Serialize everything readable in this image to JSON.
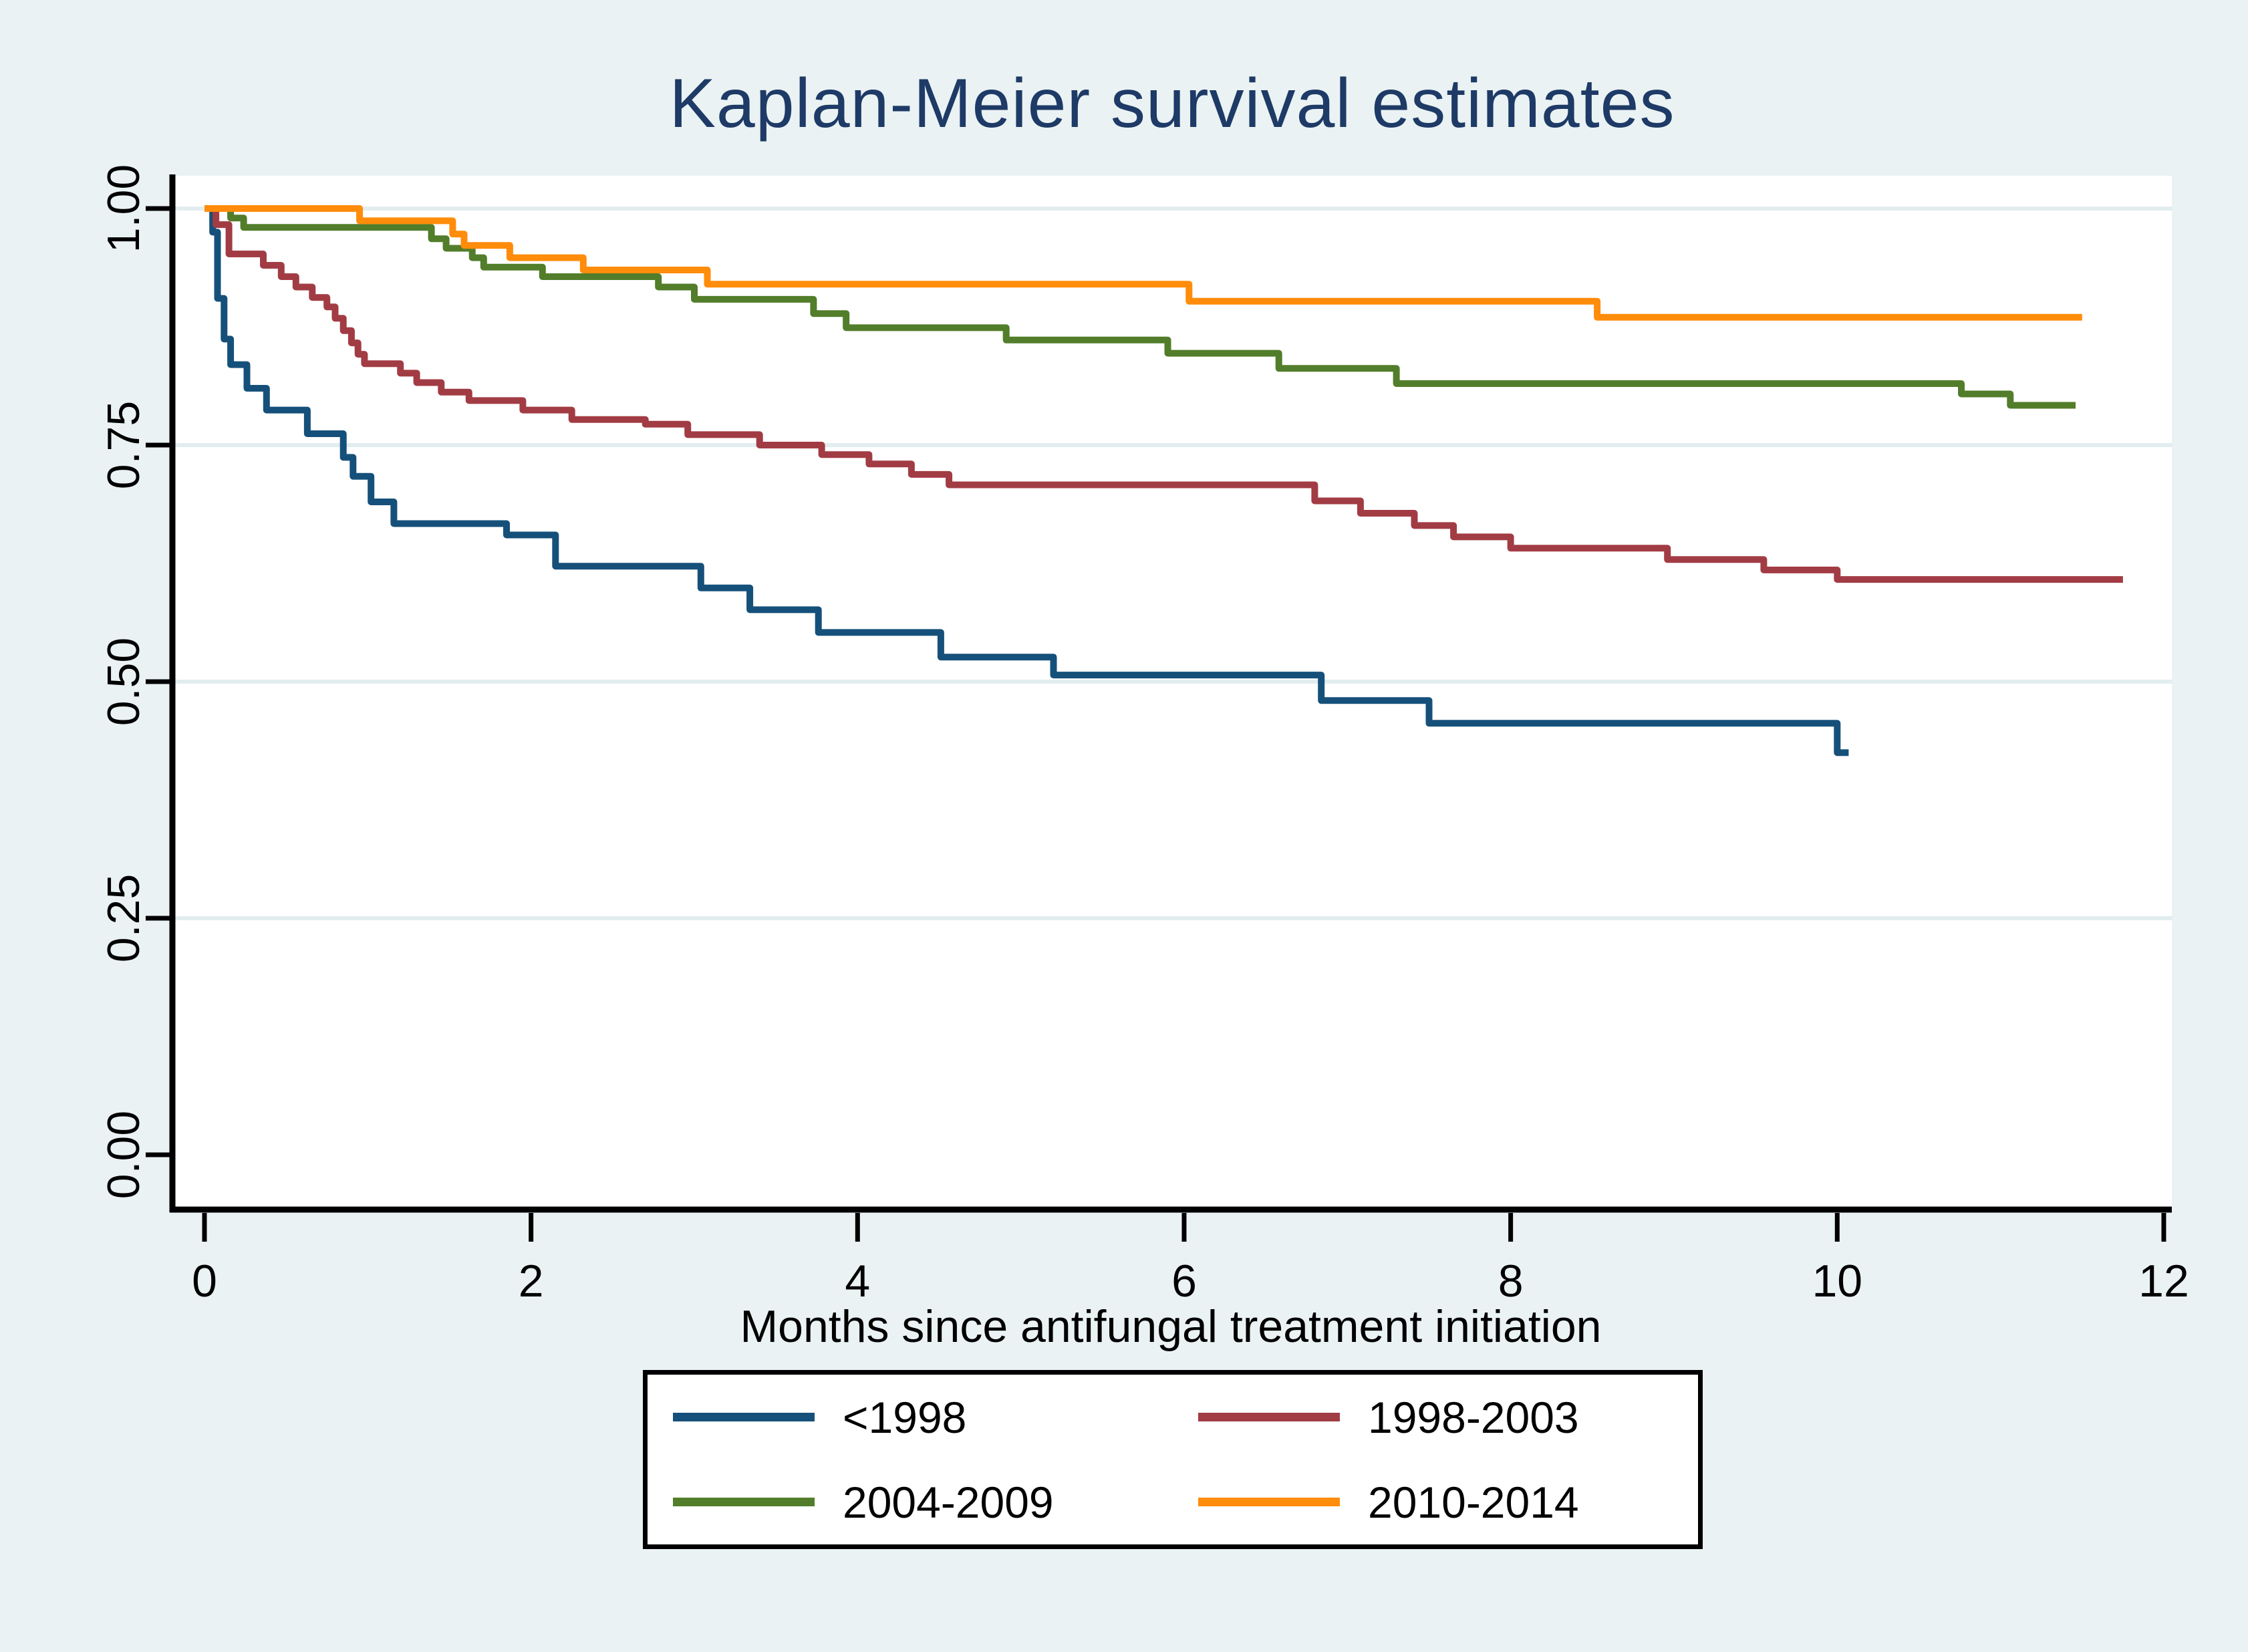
{
  "chart_data": {
    "type": "line",
    "subtype": "kaplan-meier-step",
    "title": "Kaplan-Meier survival estimates",
    "title_color": "#1e3a66",
    "xlabel": "Months since antifungal treatment initiation",
    "ylabel": "",
    "xlim": [
      0,
      12
    ],
    "ylim": [
      0.0,
      1.0
    ],
    "grid": true,
    "legend_position": "bottom-center",
    "background_color": "#eaf2f3",
    "plot_background_color": "#ffffff",
    "gridline_color": "#e2edef",
    "axis_color": "#000000",
    "x_ticks": [
      {
        "value": 0,
        "label": "0"
      },
      {
        "value": 2,
        "label": "2"
      },
      {
        "value": 4,
        "label": "4"
      },
      {
        "value": 6,
        "label": "6"
      },
      {
        "value": 8,
        "label": "8"
      },
      {
        "value": 10,
        "label": "10"
      },
      {
        "value": 12,
        "label": "12"
      }
    ],
    "y_ticks": [
      {
        "value": 1.0,
        "label": "1.00"
      },
      {
        "value": 0.75,
        "label": "0.75"
      },
      {
        "value": 0.5,
        "label": "0.50"
      },
      {
        "value": 0.25,
        "label": "0.25"
      },
      {
        "value": 0.0,
        "label": "0.00"
      }
    ],
    "series": [
      {
        "name": "<1998",
        "color": "#15507a",
        "end_t": 10.07,
        "points": [
          [
            0,
            1.0
          ],
          [
            0.05,
            0.975
          ],
          [
            0.08,
            0.905
          ],
          [
            0.12,
            0.862
          ],
          [
            0.16,
            0.835
          ],
          [
            0.26,
            0.81
          ],
          [
            0.38,
            0.787
          ],
          [
            0.63,
            0.762
          ],
          [
            0.85,
            0.737
          ],
          [
            0.91,
            0.717
          ],
          [
            1.02,
            0.69
          ],
          [
            1.16,
            0.667
          ],
          [
            1.85,
            0.655
          ],
          [
            2.15,
            0.622
          ],
          [
            3.04,
            0.599
          ],
          [
            3.34,
            0.576
          ],
          [
            3.76,
            0.552
          ],
          [
            4.51,
            0.526
          ],
          [
            5.2,
            0.507
          ],
          [
            6.84,
            0.48
          ],
          [
            7.5,
            0.456
          ],
          [
            10.0,
            0.425
          ]
        ]
      },
      {
        "name": "1998-2003",
        "color": "#a23c44",
        "end_t": 11.75,
        "points": [
          [
            0,
            1.0
          ],
          [
            0.07,
            0.983
          ],
          [
            0.15,
            0.952
          ],
          [
            0.36,
            0.94
          ],
          [
            0.47,
            0.928
          ],
          [
            0.56,
            0.917
          ],
          [
            0.66,
            0.906
          ],
          [
            0.75,
            0.896
          ],
          [
            0.8,
            0.884
          ],
          [
            0.85,
            0.871
          ],
          [
            0.9,
            0.858
          ],
          [
            0.94,
            0.846
          ],
          [
            0.98,
            0.836
          ],
          [
            1.2,
            0.826
          ],
          [
            1.3,
            0.816
          ],
          [
            1.45,
            0.806
          ],
          [
            1.62,
            0.797
          ],
          [
            1.95,
            0.787
          ],
          [
            2.25,
            0.777
          ],
          [
            2.7,
            0.772
          ],
          [
            2.96,
            0.761
          ],
          [
            3.4,
            0.75
          ],
          [
            3.78,
            0.74
          ],
          [
            4.07,
            0.73
          ],
          [
            4.33,
            0.719
          ],
          [
            4.56,
            0.708
          ],
          [
            6.8,
            0.691
          ],
          [
            7.08,
            0.678
          ],
          [
            7.41,
            0.665
          ],
          [
            7.65,
            0.653
          ],
          [
            8.0,
            0.641
          ],
          [
            8.96,
            0.629
          ],
          [
            9.55,
            0.618
          ],
          [
            10.0,
            0.608
          ]
        ]
      },
      {
        "name": "2004-2009",
        "color": "#527d2a",
        "end_t": 11.46,
        "points": [
          [
            0,
            1.0
          ],
          [
            0.16,
            0.99
          ],
          [
            0.24,
            0.98
          ],
          [
            1.39,
            0.968
          ],
          [
            1.48,
            0.958
          ],
          [
            1.64,
            0.948
          ],
          [
            1.71,
            0.938
          ],
          [
            2.07,
            0.928
          ],
          [
            2.78,
            0.917
          ],
          [
            3.0,
            0.904
          ],
          [
            3.73,
            0.889
          ],
          [
            3.93,
            0.874
          ],
          [
            4.91,
            0.861
          ],
          [
            5.9,
            0.847
          ],
          [
            6.58,
            0.831
          ],
          [
            7.3,
            0.815
          ],
          [
            10.76,
            0.804
          ],
          [
            11.06,
            0.792
          ]
        ]
      },
      {
        "name": "2010-2014",
        "color": "#ff8c0a",
        "end_t": 11.5,
        "points": [
          [
            0,
            1.0
          ],
          [
            0.95,
            0.987
          ],
          [
            1.52,
            0.973
          ],
          [
            1.59,
            0.961
          ],
          [
            1.87,
            0.948
          ],
          [
            2.32,
            0.935
          ],
          [
            3.08,
            0.92
          ],
          [
            6.03,
            0.902
          ],
          [
            8.53,
            0.885
          ]
        ]
      }
    ]
  }
}
